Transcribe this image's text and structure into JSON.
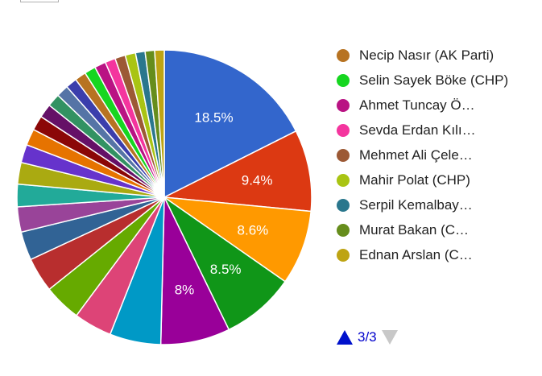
{
  "chart_data": {
    "type": "pie",
    "title": "",
    "slices": [
      {
        "value": 18.5,
        "label": "18.5%",
        "color": "#3366cc"
      },
      {
        "value": 9.4,
        "label": "9.4%",
        "color": "#dc3912"
      },
      {
        "value": 8.6,
        "label": "8.6%",
        "color": "#ff9900"
      },
      {
        "value": 8.5,
        "label": "8.5%",
        "color": "#109618"
      },
      {
        "value": 8.0,
        "label": "8%",
        "color": "#990099"
      },
      {
        "value": 5.9,
        "label": "",
        "color": "#0099c6"
      },
      {
        "value": 4.4,
        "label": "",
        "color": "#dd4477"
      },
      {
        "value": 4.3,
        "label": "",
        "color": "#66aa00"
      },
      {
        "value": 4.0,
        "label": "",
        "color": "#b82e2e"
      },
      {
        "value": 3.3,
        "label": "",
        "color": "#316395"
      },
      {
        "value": 2.9,
        "label": "",
        "color": "#994499"
      },
      {
        "value": 2.6,
        "label": "",
        "color": "#22aa99"
      },
      {
        "value": 2.5,
        "label": "",
        "color": "#aaaa11"
      },
      {
        "value": 2.1,
        "label": "",
        "color": "#6633cc"
      },
      {
        "value": 1.9,
        "label": "",
        "color": "#e67300"
      },
      {
        "value": 1.7,
        "label": "",
        "color": "#8b0707"
      },
      {
        "value": 1.6,
        "label": "",
        "color": "#651067"
      },
      {
        "value": 1.5,
        "label": "",
        "color": "#329262"
      },
      {
        "value": 1.4,
        "label": "",
        "color": "#5574a6"
      },
      {
        "value": 1.3,
        "label": "",
        "color": "#3b3eac"
      },
      {
        "value": 1.3,
        "label": "",
        "color": "#b77322"
      },
      {
        "value": 1.3,
        "label": "",
        "color": "#16d620"
      },
      {
        "value": 1.3,
        "label": "",
        "color": "#b91383"
      },
      {
        "value": 1.2,
        "label": "",
        "color": "#f4359e"
      },
      {
        "value": 1.2,
        "label": "",
        "color": "#9c5935"
      },
      {
        "value": 1.2,
        "label": "",
        "color": "#a9c413"
      },
      {
        "value": 1.1,
        "label": "",
        "color": "#2a778d"
      },
      {
        "value": 1.1,
        "label": "",
        "color": "#668d1c"
      },
      {
        "value": 1.1,
        "label": "",
        "color": "#bea413"
      }
    ]
  },
  "legend": {
    "items": [
      {
        "label": "Necip Nasır (AK Parti)",
        "color": "#b77322",
        "wrap": true
      },
      {
        "label": "Selin Sayek Böke (CHP)",
        "color": "#16d620",
        "wrap": true
      },
      {
        "label": "Ahmet Tuncay Ö…",
        "color": "#b91383",
        "wrap": false
      },
      {
        "label": "Sevda Erdan Kılı…",
        "color": "#f4359e",
        "wrap": false
      },
      {
        "label": "Mehmet Ali Çele…",
        "color": "#9c5935",
        "wrap": false
      },
      {
        "label": "Mahir Polat (CHP)",
        "color": "#a9c413",
        "wrap": false
      },
      {
        "label": "Serpil Kemalbay…",
        "color": "#2a778d",
        "wrap": false
      },
      {
        "label": "Murat Bakan (C…",
        "color": "#668d1c",
        "wrap": false
      },
      {
        "label": "Ednan Arslan (C…",
        "color": "#bea413",
        "wrap": false
      }
    ]
  },
  "pager": {
    "text": "3/3",
    "prev_icon": "triangle-up-icon",
    "next_icon": "triangle-down-icon"
  }
}
